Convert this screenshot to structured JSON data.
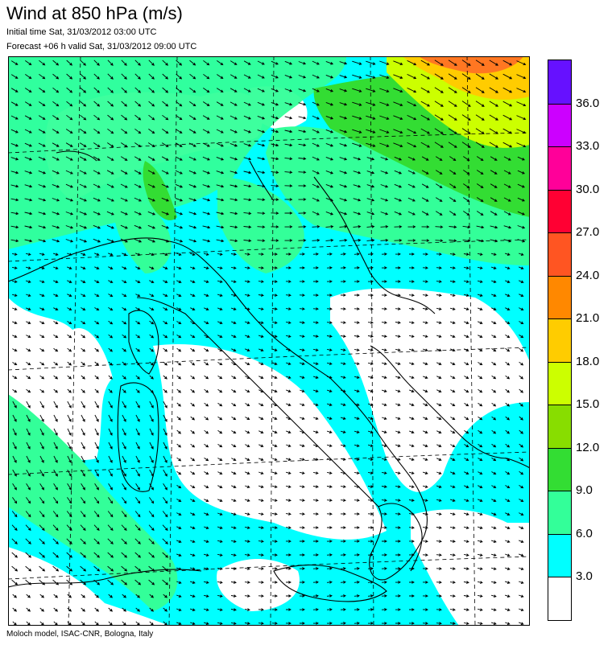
{
  "header": {
    "title": "Wind at 850 hPa (m/s)",
    "initial_time": "Initial time  Sat, 31/03/2012 03:00 UTC",
    "forecast": "Forecast +06 h valid  Sat, 31/03/2012 09:00 UTC"
  },
  "footer": {
    "credit": "Moloch model, ISAC-CNR, Bologna, Italy"
  },
  "legend": {
    "levels": [
      {
        "label": "",
        "color": "#ffffff"
      },
      {
        "label": "3.0",
        "color": "#00ffff"
      },
      {
        "label": "6.0",
        "color": "#33ff99"
      },
      {
        "label": "9.0",
        "color": "#33dd33"
      },
      {
        "label": "12.0",
        "color": "#88dd00"
      },
      {
        "label": "15.0",
        "color": "#ccff00"
      },
      {
        "label": "18.0",
        "color": "#ffcc00"
      },
      {
        "label": "21.0",
        "color": "#ff8800"
      },
      {
        "label": "24.0",
        "color": "#ff5522"
      },
      {
        "label": "27.0",
        "color": "#ff0033"
      },
      {
        "label": "30.0",
        "color": "#ff0099"
      },
      {
        "label": "33.0",
        "color": "#cc00ff"
      },
      {
        "label": "36.0",
        "color": "#6611ff"
      }
    ]
  },
  "colors": {
    "land_line": "#000000",
    "grid_line": "#000000",
    "arrow": "#000000"
  }
}
